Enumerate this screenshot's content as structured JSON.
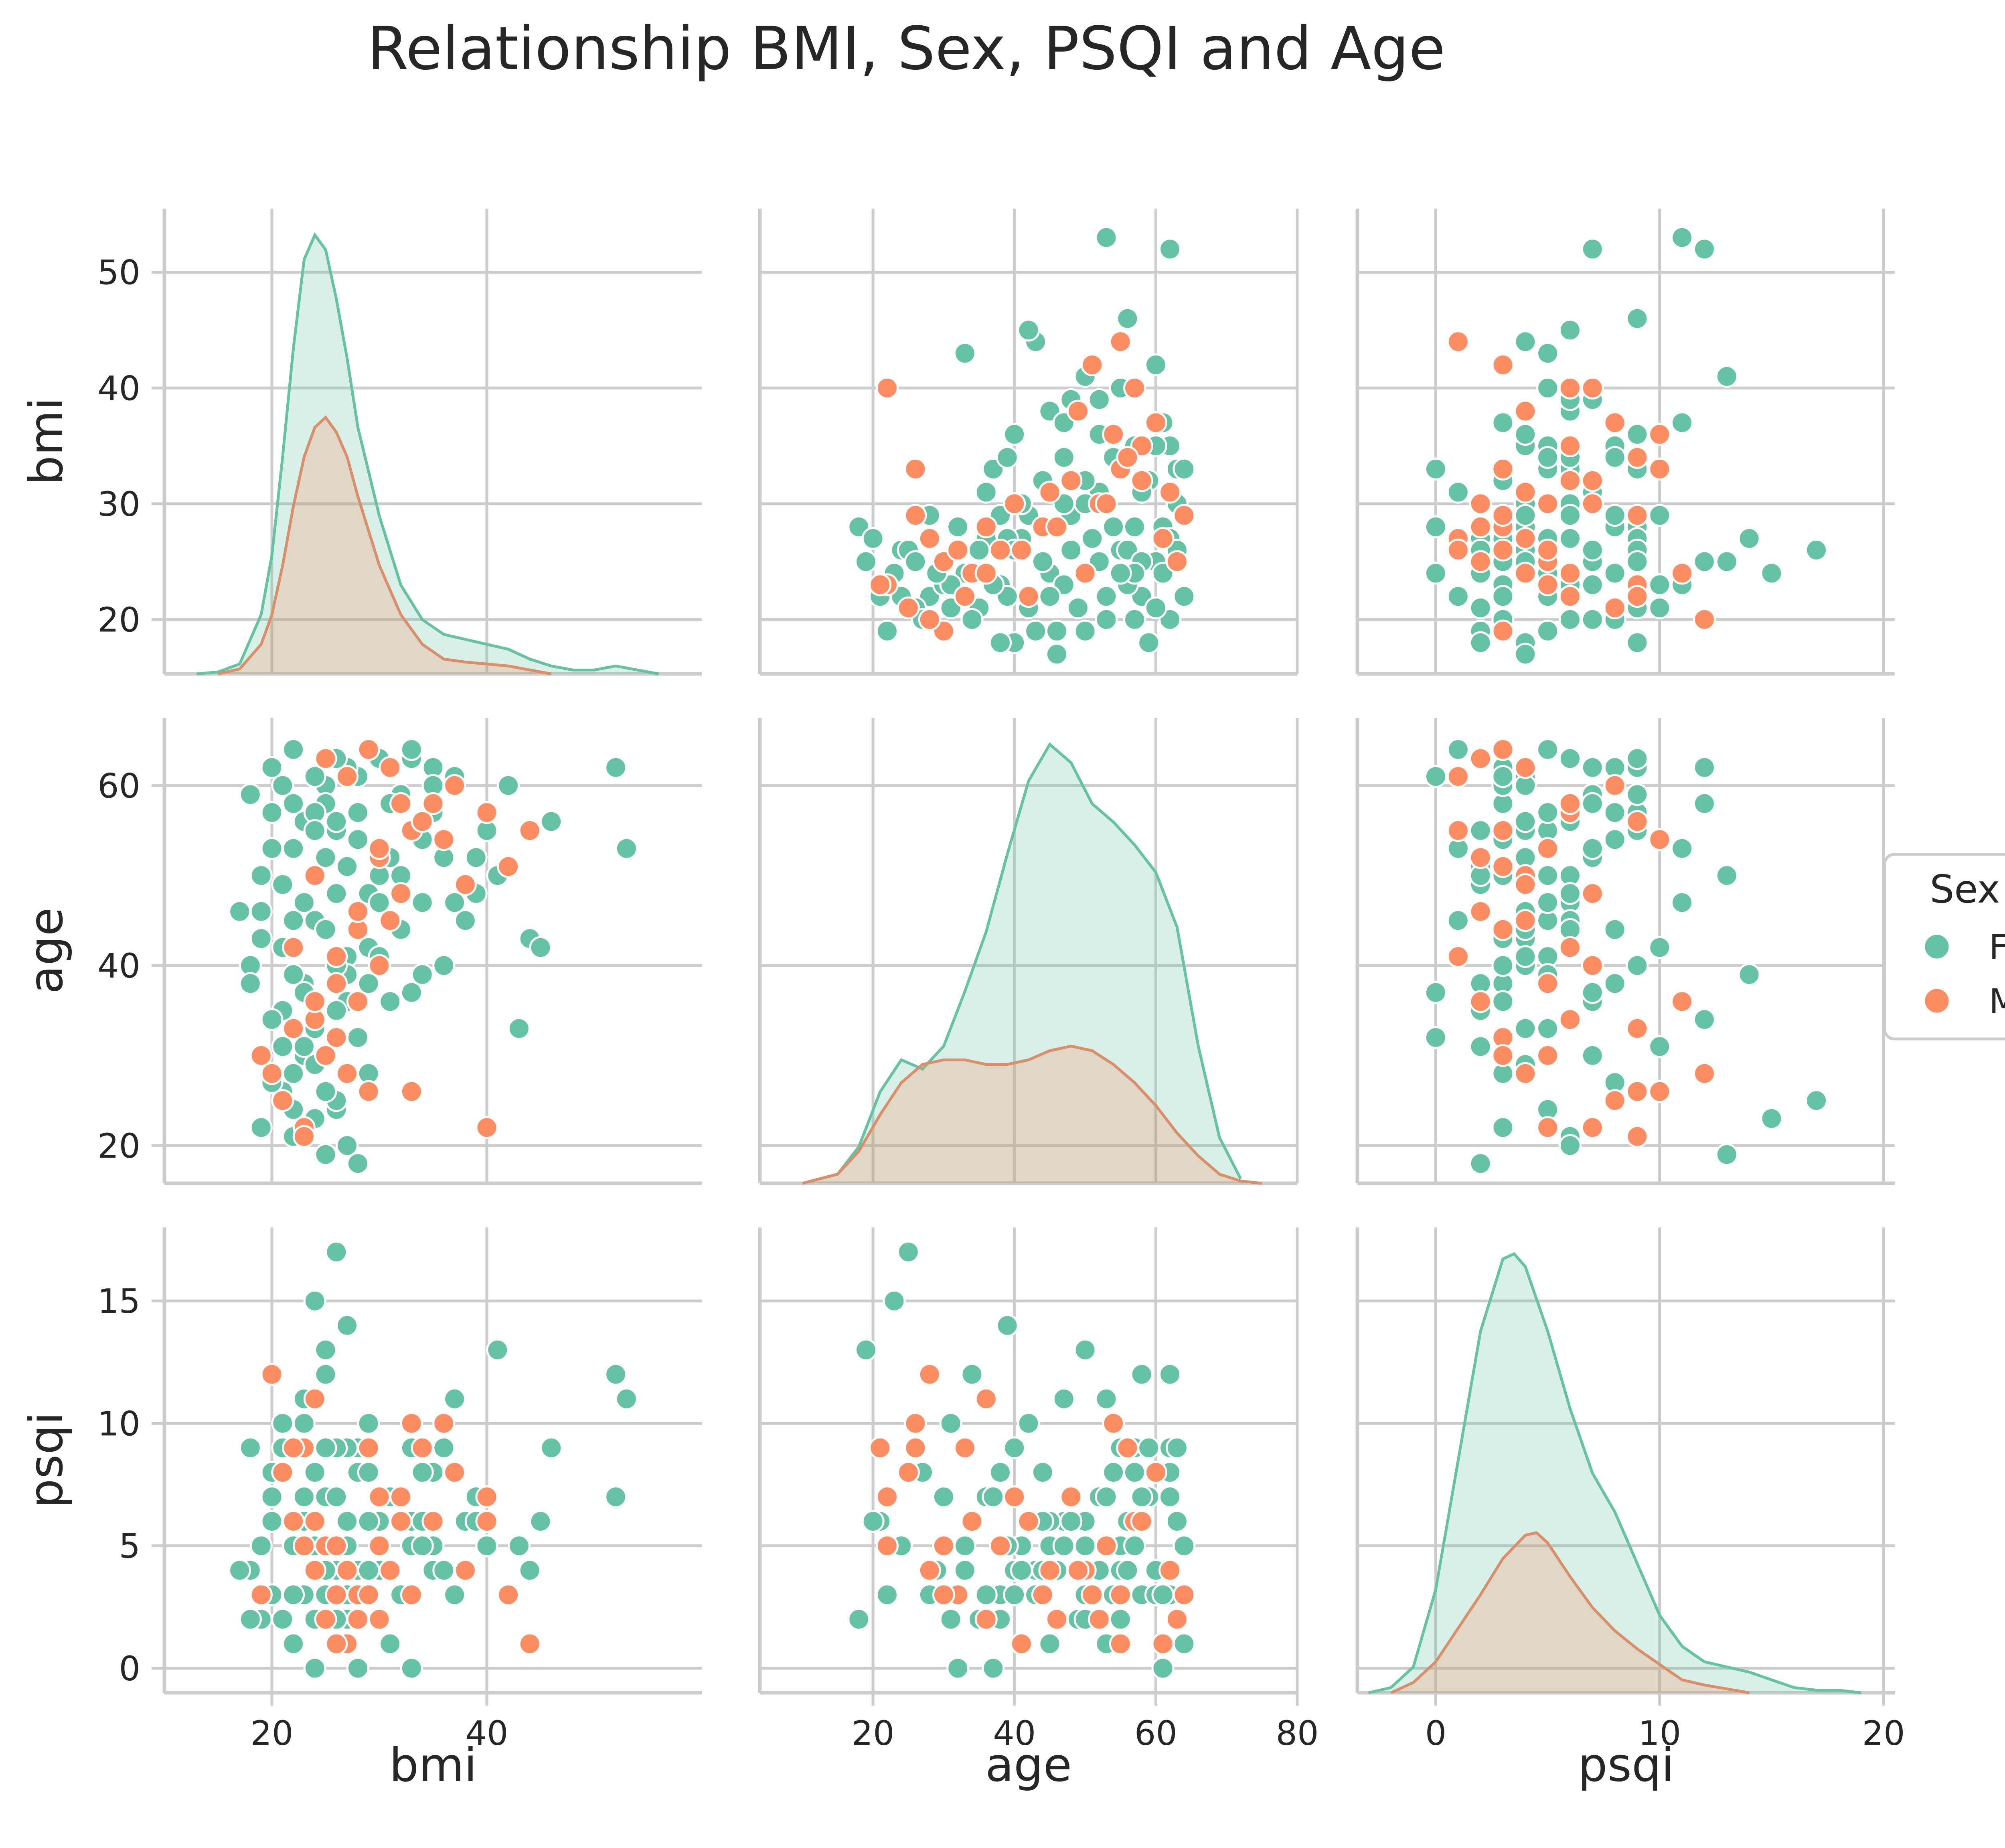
{
  "chart_data": {
    "type": "scatter",
    "kind": "pairplot",
    "title": "Relationship BMI, Sex, PSQI and Age",
    "variables": [
      "bmi",
      "age",
      "psqi"
    ],
    "diagonal": "kde",
    "grid": true,
    "hue": {
      "title": "Sex",
      "levels": [
        "F",
        "M"
      ],
      "colors": {
        "F": "#66c2a5",
        "M": "#fc8d62"
      },
      "legend_position": "right"
    },
    "axes": {
      "bmi": {
        "label": "bmi",
        "range": [
          10,
          60
        ],
        "ticks": [
          20,
          40
        ]
      },
      "age": {
        "label": "age",
        "range": [
          4,
          80
        ],
        "ticks": [
          20,
          40,
          60,
          80
        ]
      },
      "psqi": {
        "label": "psqi",
        "range": [
          -3.5,
          20.5
        ],
        "ticks": [
          0,
          10,
          20
        ]
      }
    },
    "y_axes": {
      "bmi": {
        "label": "bmi",
        "range": [
          15.3,
          55.5
        ],
        "ticks": [
          20,
          30,
          40,
          50
        ]
      },
      "age": {
        "label": "age",
        "range": [
          15.8,
          67.5
        ],
        "ticks": [
          20,
          40,
          60
        ]
      },
      "psqi": {
        "label": "psqi",
        "range": [
          -1,
          18
        ],
        "ticks": [
          0,
          5,
          10,
          15
        ]
      }
    },
    "kde": {
      "bmi": {
        "F": {
          "x": [
            13,
            15,
            17,
            19,
            20,
            21,
            22,
            23,
            24,
            25,
            26,
            27,
            28,
            30,
            32,
            34,
            36,
            38,
            40,
            42,
            44,
            46,
            48,
            50,
            52,
            54,
            56
          ],
          "y": [
            0,
            0.002,
            0.01,
            0.06,
            0.12,
            0.22,
            0.33,
            0.42,
            0.445,
            0.43,
            0.38,
            0.32,
            0.25,
            0.16,
            0.09,
            0.055,
            0.04,
            0.035,
            0.03,
            0.025,
            0.015,
            0.008,
            0.004,
            0.004,
            0.008,
            0.004,
            0
          ]
        },
        "M": {
          "x": [
            15,
            17,
            19,
            20,
            21,
            22,
            23,
            24,
            25,
            26,
            27,
            28,
            30,
            32,
            34,
            36,
            38,
            40,
            42,
            44,
            46
          ],
          "y": [
            0,
            0.005,
            0.03,
            0.06,
            0.11,
            0.17,
            0.22,
            0.25,
            0.26,
            0.245,
            0.22,
            0.18,
            0.11,
            0.06,
            0.03,
            0.015,
            0.012,
            0.01,
            0.008,
            0.004,
            0
          ]
        }
      },
      "age": {
        "F": {
          "x": [
            10,
            15,
            18,
            21,
            24,
            27,
            30,
            33,
            36,
            39,
            42,
            45,
            48,
            51,
            54,
            57,
            60,
            63,
            66,
            69,
            72
          ],
          "y": [
            0,
            0.002,
            0.008,
            0.02,
            0.027,
            0.025,
            0.03,
            0.042,
            0.055,
            0.072,
            0.088,
            0.096,
            0.092,
            0.083,
            0.079,
            0.074,
            0.068,
            0.056,
            0.03,
            0.01,
            0.001
          ]
        },
        "M": {
          "x": [
            10,
            15,
            18,
            21,
            24,
            27,
            30,
            33,
            36,
            39,
            42,
            45,
            48,
            51,
            54,
            57,
            60,
            63,
            66,
            69,
            72,
            75
          ],
          "y": [
            0,
            0.002,
            0.007,
            0.015,
            0.022,
            0.026,
            0.027,
            0.027,
            0.026,
            0.026,
            0.027,
            0.029,
            0.03,
            0.029,
            0.026,
            0.022,
            0.017,
            0.011,
            0.006,
            0.002,
            0.0005,
            0
          ]
        }
      },
      "psqi": {
        "F": {
          "x": [
            -3,
            -2,
            -1,
            0,
            1,
            2,
            3,
            3.5,
            4,
            5,
            6,
            7,
            8,
            9,
            10,
            11,
            12,
            13,
            14,
            15,
            16,
            17,
            18,
            19
          ],
          "y": [
            0,
            0.002,
            0.01,
            0.04,
            0.09,
            0.14,
            0.168,
            0.17,
            0.165,
            0.14,
            0.11,
            0.085,
            0.07,
            0.05,
            0.03,
            0.018,
            0.012,
            0.01,
            0.008,
            0.005,
            0.002,
            0.001,
            0.001,
            0
          ]
        },
        "M": {
          "x": [
            -2,
            -1,
            0,
            1,
            2,
            3,
            4,
            4.5,
            5,
            6,
            7,
            8,
            9,
            10,
            11,
            12,
            13,
            14
          ],
          "y": [
            0,
            0.004,
            0.012,
            0.025,
            0.038,
            0.052,
            0.061,
            0.062,
            0.058,
            0.045,
            0.033,
            0.024,
            0.017,
            0.011,
            0.005,
            0.003,
            0.0015,
            0
          ]
        }
      }
    },
    "points": {
      "F": [
        [
          24,
          45,
          5
        ],
        [
          22,
          58,
          3
        ],
        [
          25,
          52,
          7
        ],
        [
          28,
          61,
          4
        ],
        [
          21,
          49,
          2
        ],
        [
          30,
          63,
          6
        ],
        [
          26,
          55,
          4
        ],
        [
          23,
          38,
          3
        ],
        [
          27,
          41,
          5
        ],
        [
          20,
          57,
          6
        ],
        [
          19,
          46,
          2
        ],
        [
          32,
          59,
          7
        ],
        [
          35,
          62,
          8
        ],
        [
          24,
          33,
          4
        ],
        [
          22,
          28,
          3
        ],
        [
          26,
          24,
          5
        ],
        [
          29,
          48,
          6
        ],
        [
          31,
          52,
          4
        ],
        [
          33,
          55,
          9
        ],
        [
          25,
          60,
          3
        ],
        [
          18,
          40,
          4
        ],
        [
          21,
          35,
          2
        ],
        [
          23,
          30,
          7
        ],
        [
          27,
          36,
          3
        ],
        [
          28,
          44,
          8
        ],
        [
          30,
          47,
          5
        ],
        [
          24,
          50,
          6
        ],
        [
          22,
          53,
          1
        ],
        [
          26,
          56,
          4
        ],
        [
          20,
          62,
          3
        ],
        [
          36,
          40,
          9
        ],
        [
          38,
          45,
          6
        ],
        [
          40,
          55,
          5
        ],
        [
          42,
          60,
          3
        ],
        [
          44,
          43,
          4
        ],
        [
          45,
          42,
          6
        ],
        [
          41,
          50,
          13
        ],
        [
          37,
          47,
          11
        ],
        [
          34,
          54,
          8
        ],
        [
          39,
          52,
          7
        ],
        [
          52,
          62,
          12
        ],
        [
          53,
          53,
          11
        ],
        [
          52,
          62,
          7
        ],
        [
          43,
          33,
          5
        ],
        [
          46,
          56,
          9
        ],
        [
          17,
          46,
          4
        ],
        [
          19,
          22,
          3
        ],
        [
          22,
          24,
          5
        ],
        [
          25,
          19,
          13
        ],
        [
          24,
          23,
          15
        ],
        [
          26,
          25,
          17
        ],
        [
          28,
          18,
          2
        ],
        [
          23,
          31,
          10
        ],
        [
          21,
          26,
          9
        ],
        [
          20,
          34,
          12
        ],
        [
          27,
          39,
          14
        ],
        [
          29,
          42,
          10
        ],
        [
          31,
          58,
          7
        ],
        [
          33,
          63,
          6
        ],
        [
          35,
          57,
          5
        ],
        [
          18,
          38,
          2
        ],
        [
          21,
          60,
          8
        ],
        [
          23,
          56,
          6
        ],
        [
          25,
          44,
          4
        ],
        [
          27,
          51,
          2
        ],
        [
          29,
          64,
          3
        ],
        [
          31,
          45,
          1
        ],
        [
          33,
          37,
          0
        ],
        [
          24,
          61,
          0
        ],
        [
          19,
          43,
          3
        ],
        [
          26,
          48,
          7
        ],
        [
          22,
          39,
          5
        ],
        [
          28,
          57,
          9
        ],
        [
          30,
          41,
          4
        ],
        [
          32,
          50,
          3
        ],
        [
          34,
          47,
          6
        ],
        [
          20,
          27,
          8
        ],
        [
          22,
          21,
          6
        ],
        [
          24,
          29,
          4
        ],
        [
          26,
          35,
          2
        ],
        [
          21,
          42,
          10
        ],
        [
          23,
          47,
          11
        ],
        [
          25,
          58,
          12
        ],
        [
          27,
          62,
          9
        ],
        [
          29,
          38,
          8
        ],
        [
          31,
          36,
          7
        ],
        [
          33,
          64,
          5
        ],
        [
          35,
          60,
          4
        ],
        [
          37,
          61,
          3
        ],
        [
          39,
          48,
          6
        ],
        [
          18,
          59,
          9
        ],
        [
          20,
          53,
          7
        ],
        [
          22,
          45,
          6
        ],
        [
          24,
          57,
          8
        ],
        [
          26,
          63,
          9
        ],
        [
          28,
          54,
          3
        ],
        [
          30,
          50,
          2
        ],
        [
          32,
          44,
          6
        ],
        [
          34,
          39,
          5
        ],
        [
          36,
          52,
          4
        ],
        [
          22,
          64,
          1
        ],
        [
          24,
          55,
          2
        ],
        [
          26,
          40,
          3
        ],
        [
          28,
          32,
          0
        ],
        [
          23,
          37,
          7
        ],
        [
          25,
          26,
          9
        ],
        [
          27,
          20,
          6
        ],
        [
          29,
          28,
          4
        ],
        [
          21,
          31,
          2
        ],
        [
          19,
          50,
          5
        ]
      ],
      "M": [
        [
          25,
          30,
          5
        ],
        [
          27,
          28,
          4
        ],
        [
          24,
          34,
          6
        ],
        [
          26,
          32,
          3
        ],
        [
          28,
          36,
          2
        ],
        [
          30,
          40,
          7
        ],
        [
          23,
          22,
          5
        ],
        [
          29,
          26,
          9
        ],
        [
          31,
          45,
          4
        ],
        [
          33,
          55,
          3
        ],
        [
          35,
          58,
          6
        ],
        [
          37,
          60,
          8
        ],
        [
          25,
          63,
          2
        ],
        [
          27,
          61,
          1
        ],
        [
          24,
          50,
          4
        ],
        [
          22,
          42,
          6
        ],
        [
          26,
          38,
          5
        ],
        [
          28,
          44,
          3
        ],
        [
          30,
          52,
          2
        ],
        [
          32,
          48,
          7
        ],
        [
          34,
          56,
          9
        ],
        [
          36,
          54,
          10
        ],
        [
          38,
          49,
          4
        ],
        [
          40,
          57,
          6
        ],
        [
          42,
          51,
          3
        ],
        [
          44,
          55,
          1
        ],
        [
          21,
          25,
          8
        ],
        [
          23,
          21,
          9
        ],
        [
          40,
          22,
          7
        ],
        [
          33,
          26,
          10
        ],
        [
          19,
          30,
          3
        ],
        [
          20,
          28,
          12
        ],
        [
          22,
          33,
          9
        ],
        [
          24,
          36,
          11
        ],
        [
          26,
          41,
          1
        ],
        [
          28,
          46,
          2
        ],
        [
          30,
          53,
          5
        ],
        [
          32,
          58,
          6
        ],
        [
          29,
          64,
          3
        ],
        [
          31,
          62,
          4
        ]
      ]
    }
  }
}
